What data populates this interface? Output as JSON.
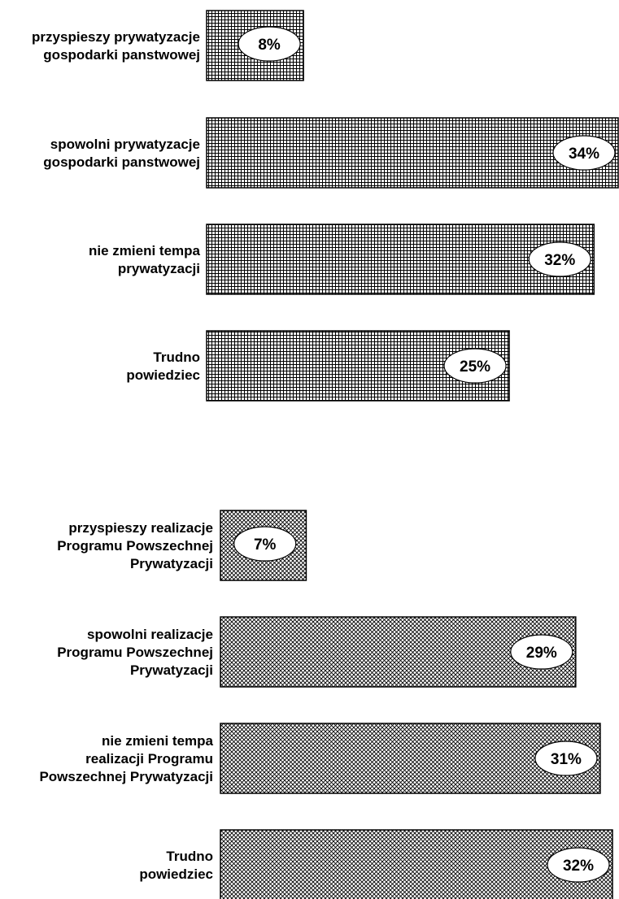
{
  "chart_data": [
    {
      "type": "bar",
      "orientation": "horizontal",
      "pattern": "grid",
      "categories": [
        [
          "przyspieszy prywatyzacje",
          "gospodarki panstwowej"
        ],
        [
          "spowolni prywatyzacje",
          "gospodarki panstwowej"
        ],
        [
          "nie zmieni tempa",
          "prywatyzacji"
        ],
        [
          "Trudno",
          "powiedziec"
        ]
      ],
      "values": [
        8,
        34,
        32,
        25
      ],
      "value_labels": [
        "8%",
        "34%",
        "32%",
        "25%"
      ],
      "xlim": [
        0,
        34
      ]
    },
    {
      "type": "bar",
      "orientation": "horizontal",
      "pattern": "crosshatch",
      "categories": [
        [
          "przyspieszy realizacje",
          "Programu Powszechnej",
          "Prywatyzacji"
        ],
        [
          "spowolni realizacje",
          "Programu Powszechnej",
          "Prywatyzacji"
        ],
        [
          "nie zmieni tempa",
          "realizacji Programu",
          "Powszechnej Prywatyzacji"
        ],
        [
          "Trudno",
          "powiedziec"
        ]
      ],
      "values": [
        7,
        29,
        31,
        32
      ],
      "value_labels": [
        "7%",
        "29%",
        "31%",
        "32%"
      ],
      "xlim": [
        0,
        32
      ]
    }
  ]
}
